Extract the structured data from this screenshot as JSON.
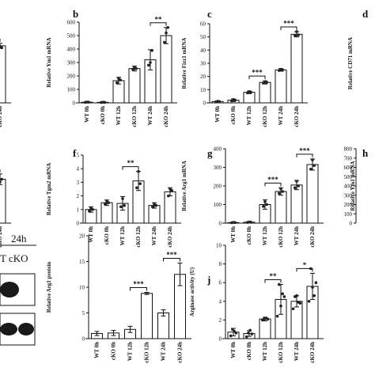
{
  "figure": {
    "blot_header": "24h",
    "blot_lanes": "T cKO"
  },
  "chart_data": [
    {
      "id": "a",
      "panel_label": "",
      "type": "bar",
      "ylabel": "",
      "categories": [
        "cKO 24h"
      ],
      "values": [
        470
      ],
      "ylim": [
        0,
        600
      ],
      "yticks": [],
      "sig": [
        {
          "a": 0,
          "b": 0,
          "text": "***"
        }
      ],
      "points": [
        [
          480,
          465,
          455
        ]
      ],
      "err": [
        20
      ]
    },
    {
      "id": "b",
      "panel_label": "b",
      "type": "bar",
      "ylabel": "Relative Ym1 mRNA",
      "categories": [
        "WT 0h",
        "cKO 0h",
        "WT 12h",
        "cKO 12h",
        "WT 24h",
        "cKO 24h"
      ],
      "values": [
        5,
        4,
        165,
        255,
        320,
        500
      ],
      "ylim": [
        0,
        600
      ],
      "yticks": [
        0,
        100,
        200,
        300,
        400,
        500,
        600
      ],
      "sig": [
        {
          "a": 4,
          "b": 5,
          "text": "**"
        }
      ],
      "points": [
        [
          4,
          6,
          5
        ],
        [
          3,
          5,
          4
        ],
        [
          150,
          180,
          170
        ],
        [
          250,
          265,
          255
        ],
        [
          280,
          300,
          390
        ],
        [
          450,
          520,
          560
        ]
      ],
      "err": [
        2,
        2,
        25,
        18,
        75,
        60
      ]
    },
    {
      "id": "c",
      "panel_label": "c",
      "type": "bar",
      "ylabel": "Relative Fizz1 mRNA",
      "categories": [
        "WT 0h",
        "cKO 0h",
        "WT 12h",
        "cKO 12h",
        "WT 24h",
        "cKO 24h"
      ],
      "values": [
        1,
        2,
        8,
        15.5,
        25,
        52
      ],
      "ylim": [
        0,
        60
      ],
      "yticks": [
        0,
        10,
        20,
        30,
        40,
        50,
        60
      ],
      "sig": [
        {
          "a": 2,
          "b": 3,
          "text": "***"
        },
        {
          "a": 4,
          "b": 5,
          "text": "***"
        }
      ],
      "points": [
        [
          0.8,
          1.2,
          1
        ],
        [
          1.5,
          2.5,
          2
        ],
        [
          7.5,
          8.5,
          8
        ],
        [
          15,
          16,
          15.5
        ],
        [
          24.5,
          25.5,
          25
        ],
        [
          51,
          54,
          51.5
        ]
      ],
      "err": [
        0.5,
        1,
        1,
        1.2,
        1,
        2
      ]
    },
    {
      "id": "d",
      "panel_label": "d",
      "type": "bar",
      "ylabel": "Relative CD71 mRNA",
      "categories": [],
      "values": [],
      "ylim": [
        0,
        10
      ],
      "yticks": [],
      "sig": [],
      "points": [],
      "err": []
    },
    {
      "id": "e",
      "panel_label": "",
      "type": "bar",
      "ylabel": "",
      "categories": [
        "cKO 24h"
      ],
      "values": [
        3.3
      ],
      "ylim": [
        0,
        5
      ],
      "yticks": [],
      "sig": [
        {
          "a": 0,
          "b": 0,
          "text": "***"
        }
      ],
      "points": [
        [
          3.5,
          3.1,
          3.3
        ]
      ],
      "err": [
        0.4
      ]
    },
    {
      "id": "f",
      "panel_label": "f",
      "type": "bar",
      "ylabel": "Relative Tgm2 mRNA",
      "categories": [
        "WT 0h",
        "cKO 0h",
        "WT 12h",
        "cKO 12h",
        "WT 24h",
        "cKO 24h"
      ],
      "values": [
        1.0,
        1.5,
        1.45,
        3.1,
        1.3,
        2.3
      ],
      "ylim": [
        0,
        5
      ],
      "yticks": [
        0,
        1,
        2,
        3,
        4,
        5
      ],
      "sig": [
        {
          "a": 2,
          "b": 3,
          "text": "**"
        }
      ],
      "points": [
        [
          0.9,
          1.1,
          1.0
        ],
        [
          1.4,
          1.6,
          1.5
        ],
        [
          1.2,
          1.8,
          1.3
        ],
        [
          2.6,
          3.8,
          2.9
        ],
        [
          1.2,
          1.4,
          1.3
        ],
        [
          2.0,
          2.5,
          2.4
        ]
      ],
      "err": [
        0.2,
        0.2,
        0.5,
        0.7,
        0.2,
        0.3
      ]
    },
    {
      "id": "g",
      "panel_label": "g",
      "type": "bar",
      "ylabel": "Relative Arg1 mRNA",
      "categories": [
        "WT 0h",
        "cKO 0h",
        "WT 12h",
        "cKO 12h",
        "WT 24h",
        "cKO 24h"
      ],
      "values": [
        3,
        5,
        100,
        170,
        205,
        315
      ],
      "ylim": [
        0,
        400
      ],
      "yticks": [
        0,
        100,
        200,
        300,
        400
      ],
      "sig": [
        {
          "a": 2,
          "b": 3,
          "text": "***"
        },
        {
          "a": 4,
          "b": 5,
          "text": "***"
        }
      ],
      "points": [
        [
          2,
          4,
          3
        ],
        [
          4,
          6,
          5
        ],
        [
          90,
          115,
          100
        ],
        [
          160,
          185,
          170
        ],
        [
          190,
          225,
          200
        ],
        [
          290,
          340,
          310
        ]
      ],
      "err": [
        2,
        3,
        25,
        20,
        25,
        30
      ]
    },
    {
      "id": "h",
      "panel_label": "h",
      "type": "bar",
      "ylabel": "Relative Ym1 mRNA",
      "categories": [],
      "values": [],
      "ylim": [
        0,
        800
      ],
      "yticks": [
        0,
        100,
        200,
        300,
        400,
        500,
        600,
        700,
        800
      ],
      "sig": [],
      "points": [],
      "err": []
    },
    {
      "id": "i",
      "panel_label": "",
      "type": "bar",
      "ylabel": "Relative Arg1 protein",
      "categories": [
        "WT 0h",
        "cKO 0h",
        "WT 12h",
        "cKO 12h",
        "WT 24h",
        "cKO 24h"
      ],
      "values": [
        1.0,
        1.1,
        1.8,
        8.8,
        5.0,
        12.5
      ],
      "ylim": [
        0,
        20
      ],
      "yticks": [
        0,
        5,
        10,
        15,
        20
      ],
      "sig": [
        {
          "a": 2,
          "b": 3,
          "text": "***"
        },
        {
          "a": 4,
          "b": 5,
          "text": "***"
        }
      ],
      "points": [],
      "err": [
        0.4,
        0.5,
        0.6,
        0.2,
        0.6,
        2.2
      ]
    },
    {
      "id": "j",
      "panel_label": "j",
      "type": "bar",
      "ylabel": "Arginase activity (U)",
      "categories": [
        "WT 0h",
        "cKO 0h",
        "WT 12h",
        "cKO 12h",
        "WT 24h",
        "cKO 24h"
      ],
      "values": [
        0.7,
        0.55,
        2.1,
        4.2,
        4.0,
        5.6
      ],
      "ylim": [
        0,
        10
      ],
      "yticks": [
        0,
        2,
        4,
        6,
        8,
        10
      ],
      "sig": [
        {
          "a": 2,
          "b": 3,
          "text": "**"
        },
        {
          "a": 4,
          "b": 5,
          "text": "*"
        }
      ],
      "points": [
        [
          0.3,
          1.0,
          0.8,
          0.6
        ],
        [
          0.2,
          0.6,
          0.9,
          0.5
        ],
        [
          2.0,
          2.1,
          2.2,
          2.1
        ],
        [
          2.4,
          5.8,
          3.5,
          4.8,
          4.5
        ],
        [
          3.2,
          4.5,
          4.6,
          3.9,
          3.8
        ],
        [
          4.0,
          7.5,
          5.5,
          4.6,
          6.0
        ]
      ],
      "err": [
        0.4,
        0.3,
        0.2,
        1.6,
        0.6,
        1.4
      ]
    }
  ]
}
